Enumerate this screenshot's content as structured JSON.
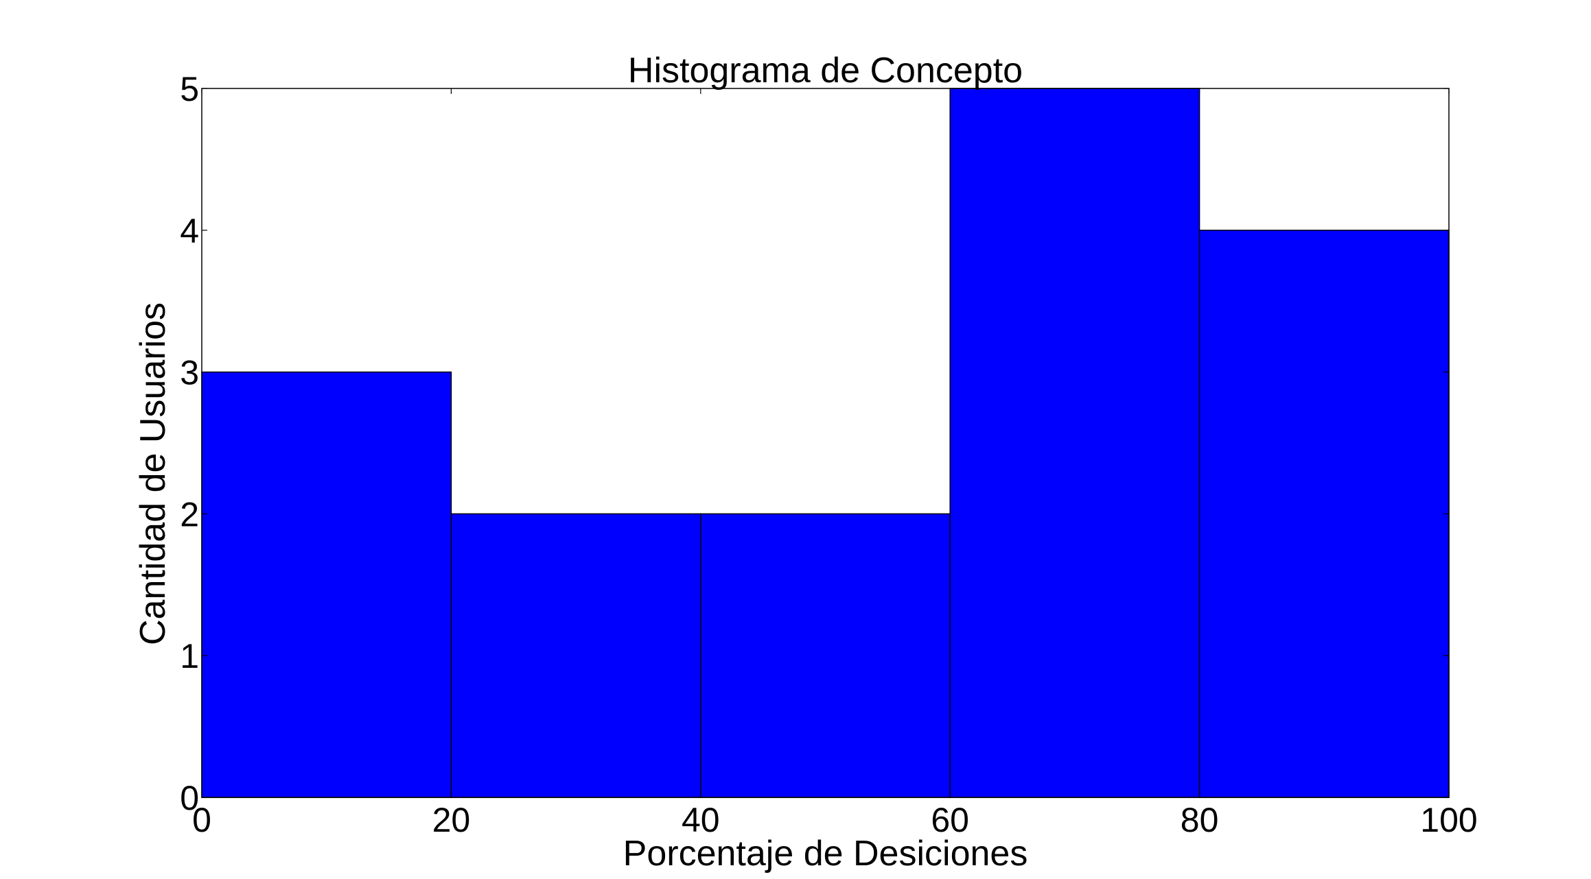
{
  "chart_data": {
    "type": "bar",
    "title": "Histograma de Concepto",
    "xlabel": "Porcentaje de Desiciones",
    "ylabel": "Cantidad de Usuarios",
    "bins": [
      {
        "start": 0,
        "end": 20,
        "count": 3
      },
      {
        "start": 20,
        "end": 40,
        "count": 2
      },
      {
        "start": 40,
        "end": 60,
        "count": 2
      },
      {
        "start": 60,
        "end": 80,
        "count": 5
      },
      {
        "start": 80,
        "end": 100,
        "count": 4
      }
    ],
    "xlim": [
      0,
      100
    ],
    "ylim": [
      0,
      5
    ],
    "xticks": [
      "0",
      "20",
      "40",
      "60",
      "80",
      "100"
    ],
    "yticks": [
      "0",
      "1",
      "2",
      "3",
      "4",
      "5"
    ],
    "grid": false,
    "legend": false,
    "bar_color": "#0000ff",
    "edge_color": "#000000"
  }
}
